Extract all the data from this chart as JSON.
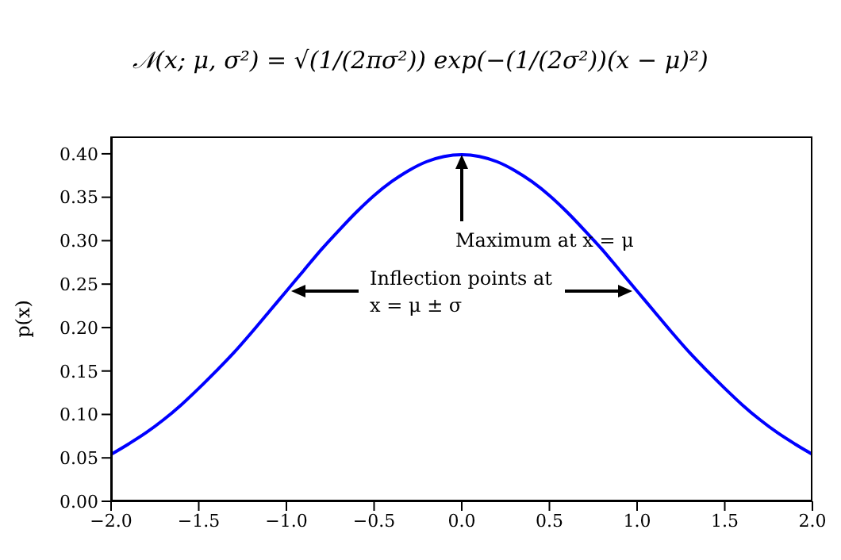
{
  "chart_data": {
    "type": "line",
    "title": "𝒩(x; μ, σ²) = √(1/(2πσ²)) exp(−(1/(2σ²))(x − μ)²)",
    "ylabel": "p(x)",
    "x": [
      -2.0,
      -1.9,
      -1.8,
      -1.7,
      -1.6,
      -1.5,
      -1.4,
      -1.3,
      -1.2,
      -1.1,
      -1.0,
      -0.9,
      -0.8,
      -0.7,
      -0.6,
      -0.5,
      -0.4,
      -0.3,
      -0.2,
      -0.1,
      0.0,
      0.1,
      0.2,
      0.3,
      0.4,
      0.5,
      0.6,
      0.7,
      0.8,
      0.9,
      1.0,
      1.1,
      1.2,
      1.3,
      1.4,
      1.5,
      1.6,
      1.7,
      1.8,
      1.9,
      2.0
    ],
    "series": [
      {
        "color": "#0000ff",
        "values": [
          0.054,
          0.066,
          0.079,
          0.094,
          0.111,
          0.13,
          0.15,
          0.171,
          0.194,
          0.218,
          0.242,
          0.266,
          0.29,
          0.312,
          0.333,
          0.352,
          0.368,
          0.381,
          0.391,
          0.397,
          0.399,
          0.397,
          0.391,
          0.381,
          0.368,
          0.352,
          0.333,
          0.312,
          0.29,
          0.266,
          0.242,
          0.218,
          0.194,
          0.171,
          0.15,
          0.13,
          0.111,
          0.094,
          0.079,
          0.066,
          0.054
        ]
      }
    ],
    "xlim": [
      -2,
      2
    ],
    "xticks": [
      {
        "value": -2,
        "label": "−2.0"
      },
      {
        "value": -1.5,
        "label": "−1.5"
      },
      {
        "value": -1,
        "label": "−1.0"
      },
      {
        "value": -0.5,
        "label": "−0.5"
      },
      {
        "value": 0,
        "label": "0.0"
      },
      {
        "value": 0.5,
        "label": "0.5"
      },
      {
        "value": 1,
        "label": "1.0"
      },
      {
        "value": 1.5,
        "label": "1.5"
      },
      {
        "value": 2,
        "label": "2.0"
      }
    ],
    "ylim": [
      0,
      0.42
    ],
    "yticks": [
      {
        "value": 0,
        "label": "0.00"
      },
      {
        "value": 0.05,
        "label": "0.05"
      },
      {
        "value": 0.1,
        "label": "0.10"
      },
      {
        "value": 0.15,
        "label": "0.15"
      },
      {
        "value": 0.2,
        "label": "0.20"
      },
      {
        "value": 0.25,
        "label": "0.25"
      },
      {
        "value": 0.3,
        "label": "0.30"
      },
      {
        "value": 0.35,
        "label": "0.35"
      },
      {
        "value": 0.4,
        "label": "0.40"
      }
    ],
    "annotations": [
      "Maximum at x = μ",
      "Inflection points at\nx = μ ± σ"
    ],
    "grid": false,
    "legend": false,
    "marker": "none",
    "line_style": "solid"
  }
}
